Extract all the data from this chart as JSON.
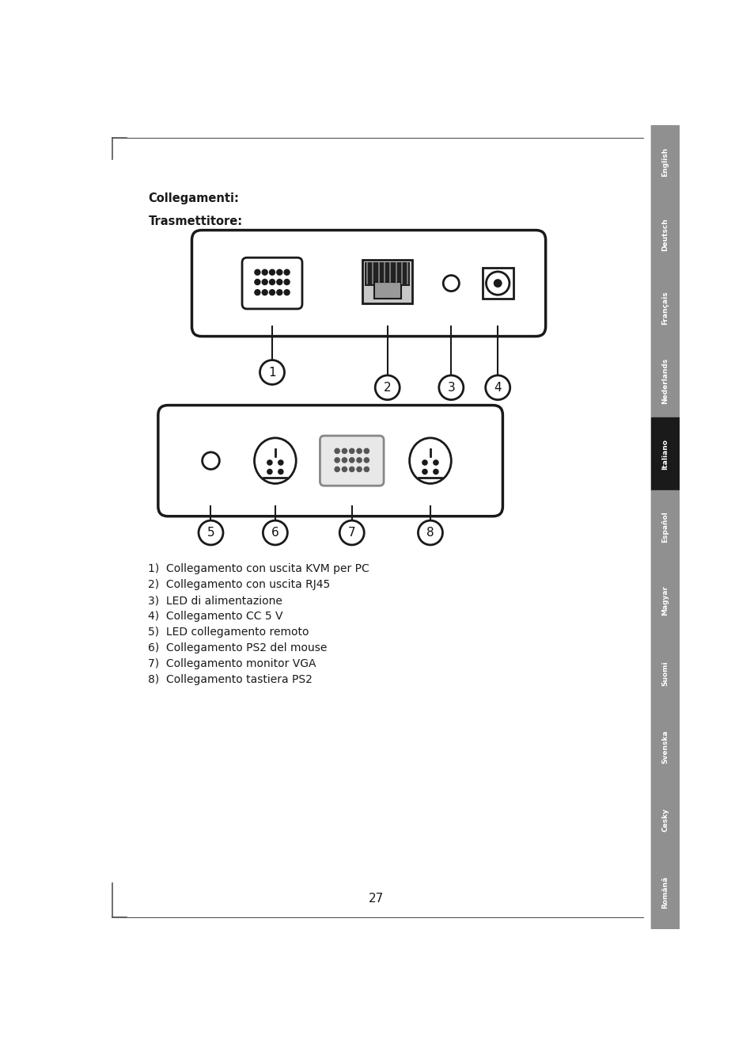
{
  "page_number": "27",
  "title1": "Collegamenti:",
  "title2": "Trasmettitore:",
  "list_items": [
    "1)  Collegamento con uscita KVM per PC",
    "2)  Collegamento con uscita RJ45",
    "3)  LED di alimentazione",
    "4)  Collegamento CC 5 V",
    "5)  LED collegamento remoto",
    "6)  Collegamento PS2 del mouse",
    "7)  Collegamento monitor VGA",
    "8)  Collegamento tastiera PS2"
  ],
  "sidebar_labels": [
    "English",
    "Deutsch",
    "Français",
    "Nederlands",
    "Italiano",
    "Español",
    "Magyar",
    "Suomi",
    "Svenska",
    "Cesky",
    "Română"
  ],
  "active_language": "Italiano",
  "sidebar_bg": "#909090",
  "sidebar_active_bg": "#1a1a1a",
  "sidebar_text_color": "#ffffff",
  "page_bg": "#ffffff",
  "border_color": "#1a1a1a",
  "line_color": "#1a1a1a"
}
